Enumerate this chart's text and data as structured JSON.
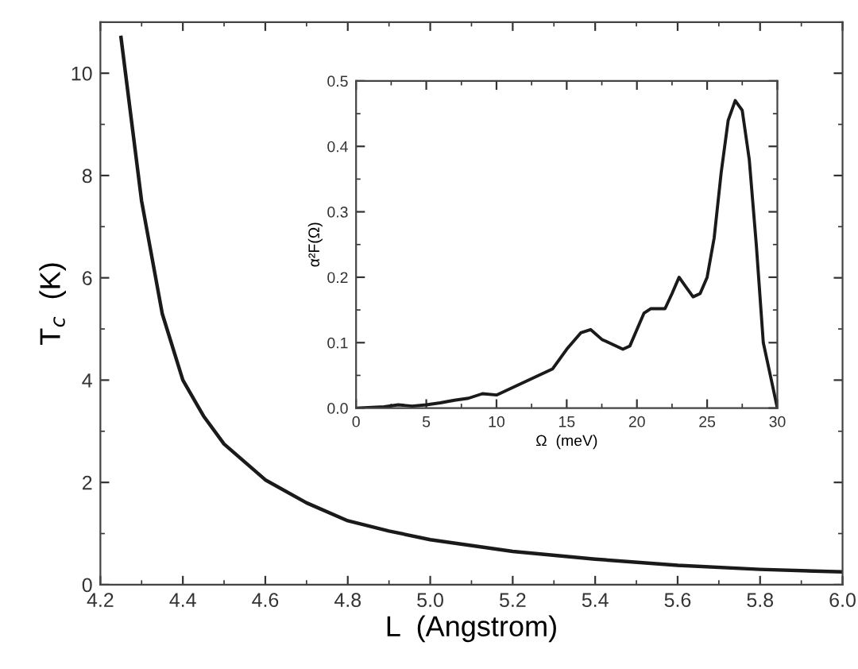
{
  "chart_data": [
    {
      "type": "line",
      "xlabel": "L  (Angstrom)",
      "ylabel": "T$_{c}$  (K)",
      "xlim": [
        4.2,
        6.0
      ],
      "ylim": [
        0,
        11
      ],
      "xticks": [
        {
          "value": 4.2,
          "label": "4.2"
        },
        {
          "value": 4.4,
          "label": "4.4"
        },
        {
          "value": 4.6,
          "label": "4.6"
        },
        {
          "value": 4.8,
          "label": "4.8"
        },
        {
          "value": 5.0,
          "label": "5.0"
        },
        {
          "value": 5.2,
          "label": "5.2"
        },
        {
          "value": 5.4,
          "label": "5.4"
        },
        {
          "value": 5.6,
          "label": "5.6"
        },
        {
          "value": 5.8,
          "label": "5.8"
        },
        {
          "value": 6.0,
          "label": "6.0"
        }
      ],
      "yticks": [
        0,
        2,
        4,
        6,
        8,
        10
      ],
      "grid": false,
      "legend": false,
      "marker": "none",
      "line_style": "solid",
      "series": [
        {
          "color": "#1a1a1a",
          "x": [
            4.25,
            4.3,
            4.35,
            4.4,
            4.45,
            4.5,
            4.6,
            4.7,
            4.8,
            4.9,
            5.0,
            5.2,
            5.4,
            5.6,
            5.8,
            6.0
          ],
          "values": [
            10.7,
            7.5,
            5.3,
            4.0,
            3.3,
            2.75,
            2.05,
            1.6,
            1.25,
            1.05,
            0.88,
            0.65,
            0.5,
            0.38,
            0.3,
            0.25
          ]
        }
      ]
    },
    {
      "type": "line",
      "xlabel": "Ω  (meV)",
      "ylabel": "α²F(Ω)",
      "xlim": [
        0,
        30
      ],
      "ylim": [
        0,
        0.5
      ],
      "xticks": [
        0,
        5,
        10,
        15,
        20,
        25,
        30
      ],
      "yticks": [
        {
          "value": 0.0,
          "label": "0.0"
        },
        0.1,
        0.2,
        0.3,
        0.4,
        0.5
      ],
      "grid": false,
      "legend": false,
      "marker": "none",
      "line_style": "solid",
      "series": [
        {
          "color": "#1a1a1a",
          "x": [
            0,
            2,
            3,
            4,
            5,
            6,
            7,
            8,
            9,
            10,
            11,
            12,
            13,
            14,
            15,
            16,
            16.7,
            17.5,
            18,
            19,
            19.5,
            20,
            20.5,
            21,
            22,
            22.5,
            23,
            23.5,
            24,
            24.5,
            25,
            25.5,
            26,
            26.5,
            27,
            27.5,
            28,
            28.5,
            29,
            29.5,
            30
          ],
          "values": [
            0,
            0.002,
            0.005,
            0.003,
            0.005,
            0.008,
            0.012,
            0.015,
            0.022,
            0.02,
            0.03,
            0.04,
            0.05,
            0.06,
            0.09,
            0.115,
            0.12,
            0.105,
            0.1,
            0.09,
            0.095,
            0.12,
            0.145,
            0.152,
            0.152,
            0.175,
            0.2,
            0.185,
            0.17,
            0.175,
            0.2,
            0.26,
            0.36,
            0.44,
            0.47,
            0.455,
            0.38,
            0.25,
            0.1,
            0.05,
            0
          ]
        }
      ]
    }
  ]
}
